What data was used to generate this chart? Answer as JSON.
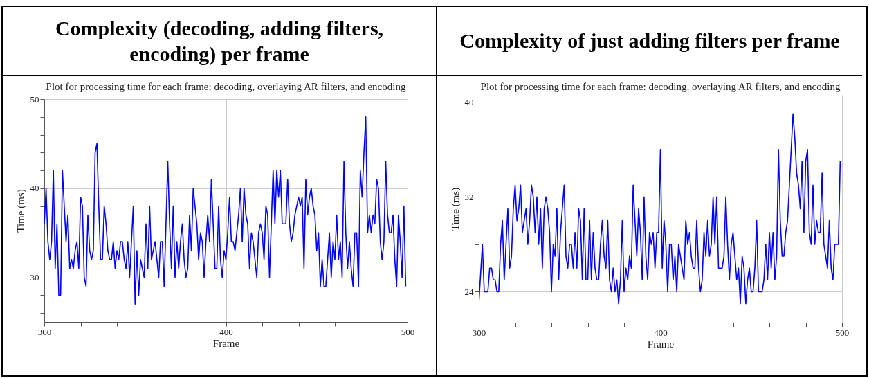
{
  "chart_data": [
    {
      "type": "line",
      "title": "Complexity (decoding, adding filters, encoding) per frame",
      "subtitle": "Plot for processing time for each frame: decoding, overlaying AR filters, and encoding",
      "xlabel": "Frame",
      "ylabel": "Time (ms)",
      "x": [
        300,
        301,
        302,
        303,
        304,
        305,
        306,
        307,
        308,
        309,
        310,
        311,
        312,
        313,
        314,
        315,
        316,
        317,
        318,
        319,
        320,
        321,
        322,
        323,
        324,
        325,
        326,
        327,
        328,
        329,
        330,
        331,
        332,
        333,
        334,
        335,
        336,
        337,
        338,
        339,
        340,
        341,
        342,
        343,
        344,
        345,
        346,
        347,
        348,
        349,
        350,
        351,
        352,
        353,
        354,
        355,
        356,
        357,
        358,
        359,
        360,
        361,
        362,
        363,
        364,
        365,
        366,
        367,
        368,
        369,
        370,
        371,
        372,
        373,
        374,
        375,
        376,
        377,
        378,
        379,
        380,
        381,
        382,
        383,
        384,
        385,
        386,
        387,
        388,
        389,
        390,
        391,
        392,
        393,
        394,
        395,
        396,
        397,
        398,
        399,
        400,
        401,
        402,
        403,
        404,
        405,
        406,
        407,
        408,
        409,
        410,
        411,
        412,
        413,
        414,
        415,
        416,
        417,
        418,
        419,
        420,
        421,
        422,
        423,
        424,
        425,
        426,
        427,
        428,
        429,
        430,
        431,
        432,
        433,
        434,
        435,
        436,
        437,
        438,
        439,
        440,
        441,
        442,
        443,
        444,
        445,
        446,
        447,
        448,
        449,
        450,
        451,
        452,
        453,
        454,
        455,
        456,
        457,
        458,
        459,
        460,
        461,
        462,
        463,
        464,
        465,
        466,
        467,
        468,
        469,
        470,
        471,
        472,
        473,
        474,
        475,
        476,
        477,
        478,
        479,
        480,
        481,
        482,
        483,
        484,
        485,
        486,
        487,
        488,
        489,
        490,
        491,
        492,
        493,
        494,
        495,
        496,
        497,
        498,
        499
      ],
      "series": [
        {
          "color": "#0000ff",
          "values": [
            36,
            40,
            34,
            32,
            34,
            42,
            31,
            36,
            28,
            28,
            42,
            38,
            34,
            37,
            31,
            32,
            31,
            33,
            34,
            31,
            39,
            38,
            30,
            29,
            37,
            33,
            32,
            33,
            44,
            45,
            38,
            32,
            32,
            38,
            36,
            33,
            32,
            32,
            34,
            31,
            33,
            32,
            34,
            34,
            32,
            31,
            34,
            30,
            34,
            38,
            27,
            33,
            28,
            32,
            31,
            30,
            36,
            31,
            38,
            32,
            33,
            34,
            32,
            30,
            34,
            34,
            29,
            36,
            43,
            36,
            31,
            38,
            30,
            34,
            31,
            34,
            36,
            32,
            30,
            31,
            37,
            33,
            40,
            38,
            36,
            32,
            35,
            34,
            30,
            34,
            37,
            34,
            41,
            36,
            31,
            31,
            38,
            32,
            30,
            33,
            32,
            35,
            39,
            34,
            34,
            33,
            35,
            37,
            40,
            34,
            40,
            37,
            36,
            31,
            35,
            34,
            32,
            30,
            35,
            36,
            35,
            32,
            38,
            37,
            30,
            36,
            42,
            36,
            42,
            39,
            42,
            36,
            36,
            36,
            41,
            36,
            34,
            35,
            37,
            38,
            39,
            38,
            39,
            31,
            41,
            37,
            39,
            40,
            38,
            37,
            33,
            35,
            29,
            32,
            29,
            29,
            32,
            35,
            30,
            34,
            32,
            37,
            32,
            34,
            30,
            43,
            35,
            31,
            34,
            31,
            29,
            35,
            35,
            29,
            42,
            39,
            44,
            48,
            35,
            37,
            35,
            37,
            36,
            41,
            40,
            34,
            32,
            34,
            43,
            37,
            35,
            35,
            37,
            32,
            29,
            37,
            34,
            30,
            38,
            29
          ]
        }
      ],
      "xlim": [
        300,
        500
      ],
      "xticks": [
        300,
        {
          "value": 320,
          "label": null
        },
        {
          "value": 340,
          "label": null
        },
        {
          "value": 360,
          "label": null
        },
        {
          "value": 380,
          "label": null
        },
        400,
        {
          "value": 420,
          "label": null
        },
        {
          "value": 440,
          "label": null
        },
        {
          "value": 460,
          "label": null
        },
        {
          "value": 480,
          "label": null
        },
        500
      ],
      "ylim": [
        25,
        50
      ],
      "yticks": [
        {
          "value": 26,
          "label": null
        },
        {
          "value": 28,
          "label": null
        },
        30,
        {
          "value": 32,
          "label": null
        },
        {
          "value": 34,
          "label": null
        },
        {
          "value": 36,
          "label": null
        },
        {
          "value": 38,
          "label": null
        },
        40,
        {
          "value": 42,
          "label": null
        },
        {
          "value": 44,
          "label": null
        },
        {
          "value": 46,
          "label": null
        },
        {
          "value": 48,
          "label": null
        },
        50
      ],
      "grid": true
    },
    {
      "type": "line",
      "title": "Complexity of just adding filters per frame",
      "subtitle": "Plot for processing time for each frame: decoding, overlaying AR filters, and encoding",
      "xlabel": "Frame",
      "ylabel": "Time (ms)",
      "x": [
        300,
        302,
        303,
        304,
        305,
        306,
        307,
        308,
        309,
        310,
        311,
        312,
        313,
        314,
        315,
        316,
        317,
        318,
        319,
        320,
        321,
        322,
        323,
        324,
        325,
        326,
        327,
        328,
        329,
        330,
        331,
        332,
        333,
        334,
        335,
        336,
        337,
        338,
        339,
        340,
        341,
        342,
        343,
        344,
        345,
        346,
        347,
        348,
        349,
        350,
        351,
        352,
        353,
        354,
        355,
        356,
        357,
        358,
        359,
        360,
        361,
        362,
        363,
        364,
        365,
        366,
        367,
        368,
        369,
        370,
        371,
        372,
        373,
        374,
        375,
        376,
        377,
        378,
        379,
        380,
        381,
        382,
        383,
        384,
        385,
        386,
        387,
        388,
        389,
        390,
        391,
        392,
        393,
        394,
        395,
        396,
        397,
        398,
        399,
        400,
        401,
        402,
        403,
        404,
        405,
        406,
        407,
        408,
        409,
        410,
        411,
        412,
        413,
        414,
        415,
        416,
        417,
        418,
        419,
        420,
        421,
        422,
        423,
        424,
        425,
        426,
        427,
        428,
        429,
        430,
        431,
        432,
        433,
        434,
        435,
        436,
        437,
        438,
        439,
        440,
        441,
        442,
        443,
        444,
        445,
        446,
        447,
        448,
        449,
        450,
        451,
        452,
        453,
        454,
        455,
        456,
        457,
        458,
        459,
        460,
        461,
        462,
        463,
        464,
        465,
        466,
        467,
        468,
        469,
        470,
        471,
        472,
        473,
        474,
        475,
        476,
        477,
        478,
        479,
        480,
        481,
        482,
        483,
        484,
        485,
        486,
        487,
        488,
        489,
        490,
        491,
        492,
        493,
        494,
        495,
        496,
        497,
        498,
        499
      ],
      "series": [
        {
          "color": "#0000ff",
          "values": [
            23,
            28,
            24,
            24,
            24,
            26,
            26,
            25,
            25,
            24,
            24,
            28,
            30,
            25,
            28,
            31,
            26,
            27,
            31,
            33,
            30,
            31,
            33,
            29,
            30,
            31,
            28,
            30,
            33,
            32,
            29,
            32,
            28,
            31,
            26,
            31,
            32,
            31,
            29,
            24,
            28,
            27,
            31,
            25,
            29,
            31,
            33,
            27,
            26,
            28,
            28,
            26,
            29,
            26,
            31,
            30,
            25,
            31,
            25,
            25,
            30,
            25,
            29,
            26,
            25,
            25,
            28,
            30,
            27,
            26,
            30,
            25,
            24,
            26,
            24,
            25,
            23,
            25,
            30,
            24,
            26,
            25,
            27,
            26,
            33,
            30,
            27,
            31,
            29,
            25,
            32,
            27,
            25,
            29,
            28,
            29,
            26,
            29,
            29,
            36,
            26,
            30,
            28,
            24,
            28,
            28,
            25,
            27,
            24,
            28,
            27,
            26,
            25,
            30,
            28,
            29,
            27,
            26,
            26,
            30,
            26,
            24,
            25,
            29,
            27,
            30,
            27,
            28,
            32,
            28,
            32,
            26,
            26,
            26,
            27,
            32,
            28,
            25,
            28,
            29,
            27,
            25,
            26,
            23,
            27,
            26,
            23,
            25,
            26,
            24,
            24,
            26,
            30,
            24,
            24,
            24,
            25,
            28,
            25,
            29,
            26,
            29,
            25,
            27,
            36,
            30,
            27,
            27,
            29,
            30,
            33,
            36,
            39,
            37,
            34,
            33,
            31,
            35,
            29,
            35,
            36,
            29,
            28,
            33,
            28,
            30,
            29,
            29,
            34,
            28,
            27,
            26,
            30,
            26,
            25,
            28,
            28,
            28,
            35
          ]
        }
      ],
      "xlim": [
        300,
        500
      ],
      "xticks": [
        300,
        {
          "value": 320,
          "label": null
        },
        {
          "value": 340,
          "label": null
        },
        {
          "value": 360,
          "label": null
        },
        {
          "value": 380,
          "label": null
        },
        400,
        {
          "value": 420,
          "label": null
        },
        {
          "value": 440,
          "label": null
        },
        {
          "value": 460,
          "label": null
        },
        {
          "value": 480,
          "label": null
        },
        500
      ],
      "ylim": [
        21.4,
        40.6
      ],
      "yticks": [
        24,
        {
          "value": 28,
          "label": null
        },
        32,
        {
          "value": 36,
          "label": null
        },
        40
      ],
      "grid": true
    }
  ]
}
